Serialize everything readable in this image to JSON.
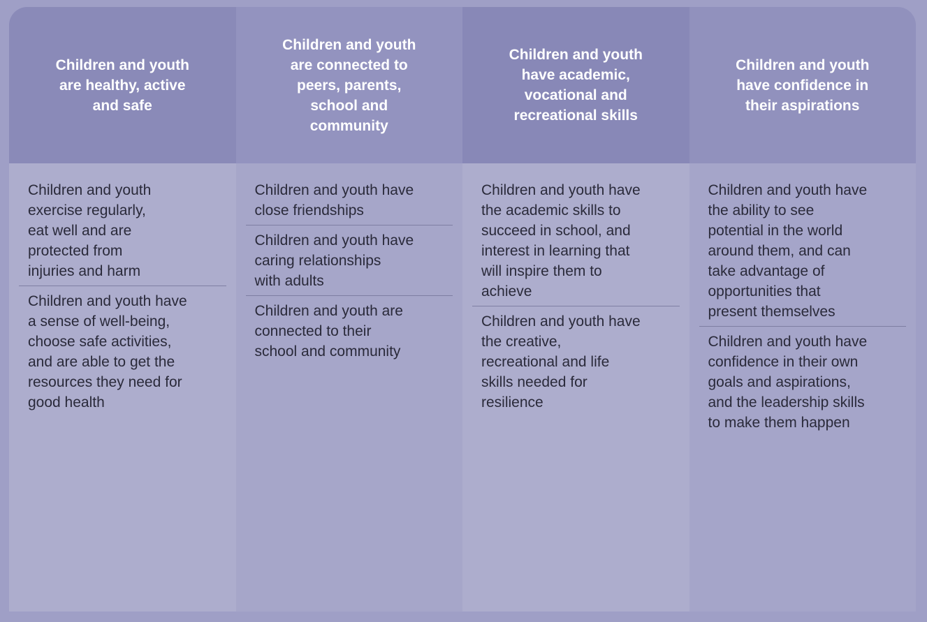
{
  "columns": [
    {
      "heading": "Children and youth\nare healthy, active\nand safe",
      "items": [
        "Children and youth\nexercise regularly,\neat well and are\nprotected from\ninjuries and harm",
        "Children and youth have\na sense of well-being,\nchoose safe activities,\nand are able to get the\nresources they need for\ngood health"
      ]
    },
    {
      "heading": "Children and youth\nare connected to\npeers, parents,\nschool and\ncommunity",
      "items": [
        "Children and youth have\nclose friendships",
        "Children and youth have\ncaring relationships\nwith adults",
        "Children and youth are\nconnected to their\nschool and community"
      ]
    },
    {
      "heading": "Children and youth\nhave academic,\nvocational and\nrecreational skills",
      "items": [
        "Children and youth have\nthe academic skills to\nsucceed in school, and\ninterest in learning that\nwill inspire them to\nachieve",
        "Children and youth have\nthe creative,\nrecreational and life\nskills needed for\nresilience"
      ]
    },
    {
      "heading": "Children and youth\nhave confidence in\ntheir aspirations",
      "items": [
        "Children and youth have\nthe ability to see\npotential in the world\naround them, and can\ntake advantage of\nopportunities that\npresent themselves",
        "Children and youth have\nconfidence in their own\ngoals and aspirations,\nand the leadership skills\nto make them happen"
      ]
    }
  ]
}
